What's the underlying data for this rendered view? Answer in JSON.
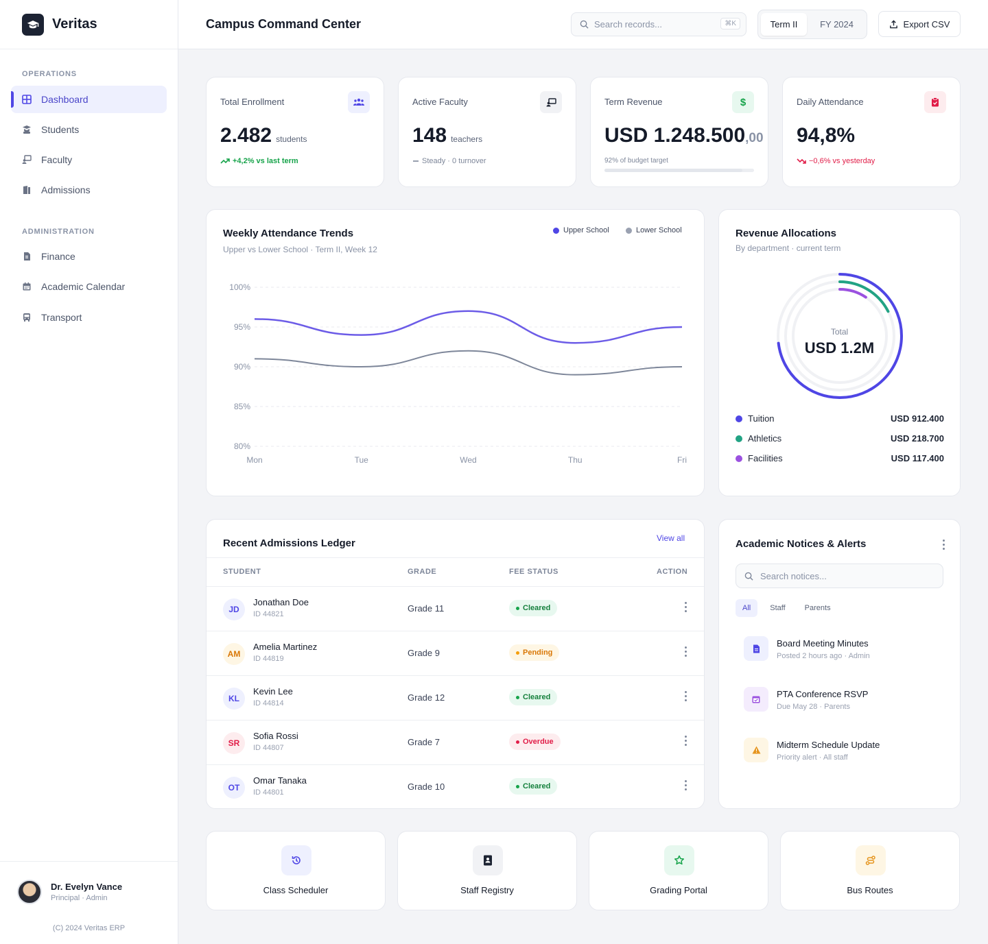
{
  "app": {
    "name": "Veritas",
    "page_title": "Campus Command Center"
  },
  "header": {
    "search_placeholder": "Search records...",
    "shortcut": "⌘K",
    "term_label": "Term II",
    "fy_label": "FY 2024",
    "export_label": "Export CSV"
  },
  "sidebar": {
    "section_ops": "OPERATIONS",
    "section_admin": "ADMINISTRATION",
    "items": [
      {
        "label": "Dashboard",
        "icon": "grid-icon",
        "active": true
      },
      {
        "label": "Students",
        "icon": "student-icon"
      },
      {
        "label": "Faculty",
        "icon": "teacher-icon"
      },
      {
        "label": "Admissions",
        "icon": "door-icon"
      },
      {
        "label": "Finance",
        "icon": "invoice-icon"
      },
      {
        "label": "Academic Calendar",
        "icon": "calendar-icon"
      },
      {
        "label": "Transport",
        "icon": "bus-icon"
      }
    ],
    "user": {
      "name": "Dr. Evelyn Vance",
      "role": "Principal · Admin"
    },
    "copyright": "(C) 2024 Veritas ERP"
  },
  "kpis": [
    {
      "title": "Total Enrollment",
      "value": "2.482",
      "unit": "students",
      "sub": "+4,2% vs last term",
      "trend": "up",
      "color": "#16a34a"
    },
    {
      "title": "Active Faculty",
      "value": "148",
      "unit": "teachers",
      "sub": "Steady · 0 turnover",
      "trend": "flat",
      "color": "#7d8699"
    },
    {
      "title": "Term Revenue",
      "value": "USD 1.248.500",
      "decimals": ",00",
      "sub": "92% of budget target",
      "progress": 0.92
    },
    {
      "title": "Daily Attendance",
      "value": "94,8%",
      "sub": "−0,6% vs yesterday",
      "trend": "down",
      "color": "#e11d48"
    }
  ],
  "attendance": {
    "title": "Weekly Attendance Trends",
    "subtitle": "Upper vs Lower School · Term II, Week 12",
    "legend": [
      "Upper School",
      "Lower School"
    ]
  },
  "chart_data": {
    "type": "line",
    "x": [
      "Mon",
      "Tue",
      "Wed",
      "Thu",
      "Fri"
    ],
    "series": [
      {
        "name": "Upper School",
        "values": [
          96,
          94,
          97,
          93,
          95
        ],
        "color": "#6c5ce7"
      },
      {
        "name": "Lower School",
        "values": [
          91,
          90,
          92,
          89,
          90
        ],
        "color": "#7d8699"
      }
    ],
    "ylim": [
      80,
      100
    ],
    "yticks": [
      "100%",
      "95%",
      "90%",
      "85%",
      "80%"
    ],
    "grid": true,
    "legend_position": "top-right"
  },
  "revenue": {
    "title": "Revenue Allocations",
    "subtitle": "By department · current term",
    "total_label": "Total",
    "total_value": "USD 1.2M",
    "items": [
      {
        "label": "Tuition",
        "value": "USD 912.400",
        "amount": 912400,
        "color": "#4f46e5"
      },
      {
        "label": "Athletics",
        "value": "USD 218.700",
        "amount": 218700,
        "color": "#22a384"
      },
      {
        "label": "Facilities",
        "value": "USD 117.400",
        "amount": 117400,
        "color": "#9b51e0"
      }
    ]
  },
  "admissions": {
    "title": "Recent Admissions Ledger",
    "view_all": "View all",
    "columns": [
      "STUDENT",
      "GRADE",
      "FEE STATUS",
      "ACTION"
    ],
    "rows": [
      {
        "initials": "JD",
        "name": "Jonathan Doe",
        "id": "ID 44821",
        "grade": "Grade 11",
        "status": "Cleared",
        "tone": "blue"
      },
      {
        "initials": "AM",
        "name": "Amelia Martinez",
        "id": "ID 44819",
        "grade": "Grade 9",
        "status": "Pending",
        "tone": "amber"
      },
      {
        "initials": "KL",
        "name": "Kevin Lee",
        "id": "ID 44814",
        "grade": "Grade 12",
        "status": "Cleared",
        "tone": "blue"
      },
      {
        "initials": "SR",
        "name": "Sofia Rossi",
        "id": "ID 44807",
        "grade": "Grade 7",
        "status": "Overdue",
        "tone": "red"
      },
      {
        "initials": "OT",
        "name": "Omar Tanaka",
        "id": "ID 44801",
        "grade": "Grade 10",
        "status": "Cleared",
        "tone": "blue"
      }
    ]
  },
  "notices": {
    "title": "Academic Notices & Alerts",
    "search_placeholder": "Search notices...",
    "tabs": [
      "All",
      "Staff",
      "Parents"
    ],
    "items": [
      {
        "title": "Board Meeting Minutes",
        "meta": "Posted 2 hours ago · Admin",
        "icon": "document-icon"
      },
      {
        "title": "PTA Conference RSVP",
        "meta": "Due May 28 · Parents",
        "icon": "calendar-check-icon"
      },
      {
        "title": "Midterm Schedule Update",
        "meta": "Priority alert · All staff",
        "icon": "warning-icon"
      }
    ]
  },
  "quick_links": [
    {
      "label": "Class Scheduler",
      "icon": "history-icon"
    },
    {
      "label": "Staff Registry",
      "icon": "contact-book-icon"
    },
    {
      "label": "Grading Portal",
      "icon": "star-icon"
    },
    {
      "label": "Bus Routes",
      "icon": "route-icon"
    }
  ]
}
